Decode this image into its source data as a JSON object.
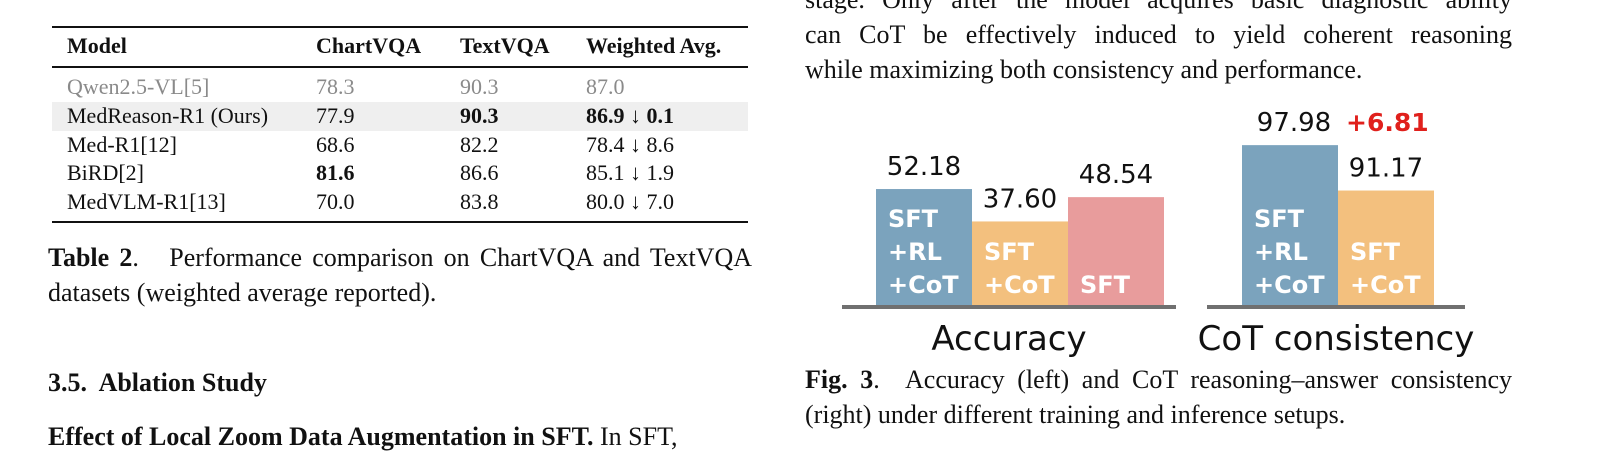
{
  "table": {
    "header": [
      "Model",
      "ChartVQA",
      "TextVQA",
      "Weighted Avg."
    ],
    "rows": [
      [
        "Qwen2.5-VL[5]",
        "78.3",
        "90.3",
        "87.0"
      ],
      [
        "MedReason-R1 (Ours)",
        "77.9",
        "90.3",
        "86.9 ↓ 0.1"
      ],
      [
        "Med-R1[12]",
        "68.6",
        "82.2",
        "78.4 ↓ 8.6"
      ],
      [
        "BiRD[2]",
        "81.6",
        "86.6",
        "85.1 ↓ 1.9"
      ],
      [
        "MedVLM-R1[13]",
        "70.0",
        "83.8",
        "80.0 ↓ 7.0"
      ]
    ],
    "caption": {
      "label": "Table 2",
      "text": "Performance comparison on ChartVQA and TextVQA datasets (weighted average reported)."
    }
  },
  "section": {
    "heading": "3.5.  Ablation Study",
    "paragraph": {
      "lead": "Effect of Local Zoom Data Augmentation in SFT.",
      "text": "In SFT,"
    }
  },
  "right_text": [
    "stage. Only after the model acquires basic diagnostic ability",
    "can CoT be effectively induced to yield coherent reasoning",
    "while maximizing both consistency and performance."
  ],
  "chart_data": [
    {
      "type": "bar",
      "x_label": "Accuracy",
      "categories": [
        [
          "SFT",
          "+RL",
          "+CoT"
        ],
        [
          "SFT",
          "+CoT"
        ],
        [
          "SFT"
        ]
      ],
      "values": [
        52.18,
        37.6,
        48.54
      ],
      "value_labels": [
        "52.18",
        "37.60",
        "48.54"
      ],
      "colors": [
        "#7ba3bd",
        "#f3c07e",
        "#e89c9c"
      ],
      "ylim": [
        0,
        72
      ]
    },
    {
      "type": "bar",
      "x_label": "CoT consistency",
      "categories": [
        [
          "SFT",
          "+RL",
          "+CoT"
        ],
        [
          "SFT",
          "+CoT"
        ]
      ],
      "values": [
        97.98,
        91.17
      ],
      "value_labels": [
        "97.98",
        "91.17"
      ],
      "colors": [
        "#7ba3bd",
        "#f3c07e"
      ],
      "ylim": [
        74,
        98
      ],
      "annotations": [
        {
          "text": "+6.81",
          "color": "#e0201c"
        }
      ]
    }
  ],
  "figure_caption": {
    "label": "Fig. 3",
    "text": "Accuracy (left) and CoT reasoning–answer consistency (right) under different training and inference setups."
  }
}
